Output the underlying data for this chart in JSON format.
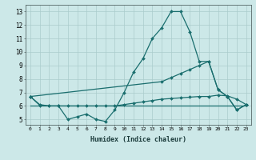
{
  "xlabel": "Humidex (Indice chaleur)",
  "bg_color": "#cce8e8",
  "grid_color": "#aacccc",
  "line_color": "#1a6e6e",
  "xlim": [
    -0.5,
    23.5
  ],
  "ylim": [
    4.6,
    13.5
  ],
  "xticks": [
    0,
    1,
    2,
    3,
    4,
    5,
    6,
    7,
    8,
    9,
    10,
    11,
    12,
    13,
    14,
    15,
    16,
    17,
    18,
    19,
    20,
    21,
    22,
    23
  ],
  "yticks": [
    5,
    6,
    7,
    8,
    9,
    10,
    11,
    12,
    13
  ],
  "series": [
    {
      "x": [
        0,
        1,
        2,
        3,
        4,
        5,
        6,
        7,
        8,
        9,
        10,
        11,
        12,
        13,
        14,
        15,
        16,
        17,
        18,
        19,
        20,
        21,
        22,
        23
      ],
      "y": [
        6.7,
        6.1,
        6.0,
        6.0,
        5.0,
        5.2,
        5.4,
        5.0,
        4.85,
        5.7,
        7.0,
        8.5,
        9.5,
        11.0,
        11.8,
        13.0,
        13.0,
        11.5,
        9.3,
        9.3,
        7.2,
        6.7,
        5.7,
        6.1
      ],
      "marker": "D",
      "markersize": 2.0,
      "linewidth": 0.9
    },
    {
      "x": [
        0,
        14,
        15,
        16,
        17,
        18,
        19,
        20,
        21,
        22,
        23
      ],
      "y": [
        6.7,
        7.8,
        8.1,
        8.4,
        8.7,
        9.0,
        9.3,
        7.2,
        6.7,
        5.7,
        6.1
      ],
      "marker": "D",
      "markersize": 2.0,
      "linewidth": 0.9
    },
    {
      "x": [
        0,
        1,
        2,
        3,
        4,
        5,
        6,
        7,
        8,
        9,
        10,
        11,
        12,
        13,
        14,
        15,
        16,
        17,
        18,
        19,
        20,
        21,
        22,
        23
      ],
      "y": [
        6.7,
        6.05,
        6.0,
        6.0,
        6.0,
        6.0,
        6.0,
        6.0,
        6.0,
        6.0,
        6.1,
        6.2,
        6.3,
        6.4,
        6.5,
        6.55,
        6.6,
        6.65,
        6.7,
        6.7,
        6.8,
        6.75,
        6.5,
        6.1
      ],
      "marker": "D",
      "markersize": 2.0,
      "linewidth": 0.9
    },
    {
      "x": [
        0,
        23
      ],
      "y": [
        6.0,
        6.0
      ],
      "marker": null,
      "markersize": 0,
      "linewidth": 0.9
    }
  ]
}
